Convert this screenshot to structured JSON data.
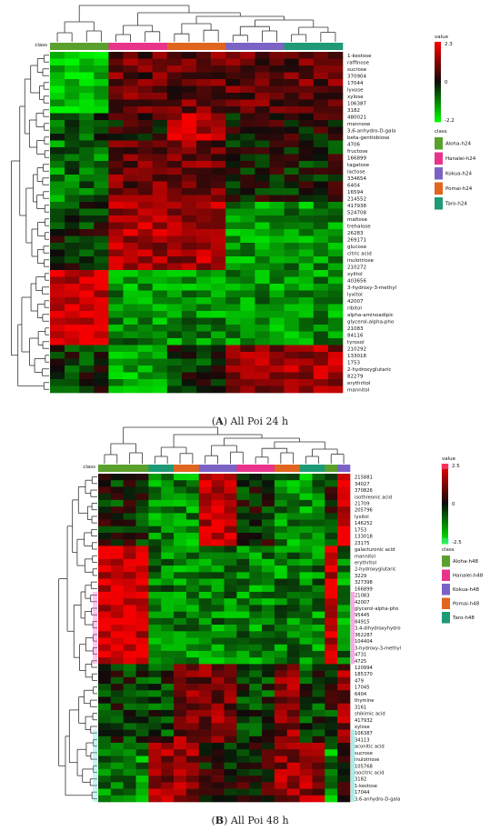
{
  "panels": [
    {
      "id": "A",
      "caption_letter": "A",
      "caption_text": "All Poi 24 h",
      "class_label": "class",
      "legend_value_title": "value",
      "legend_value_ticks": [
        "2.3",
        "0",
        "-2.2"
      ],
      "legend_class_title": "class",
      "classes": [
        {
          "name": "Aloha-h24",
          "color": "#5aa02c"
        },
        {
          "name": "Hanalei-h24",
          "color": "#e8338b"
        },
        {
          "name": "Kokua-h24",
          "color": "#7b63c6"
        },
        {
          "name": "Pomai-h24",
          "color": "#e0651f"
        },
        {
          "name": "Taro-h24",
          "color": "#1e9a76"
        }
      ],
      "column_classes": [
        0,
        0,
        0,
        0,
        1,
        1,
        1,
        1,
        3,
        3,
        3,
        3,
        2,
        2,
        2,
        2,
        4,
        4,
        4,
        4
      ],
      "rows": [
        "1-kestose",
        "raffinose",
        "sucrose",
        "370904",
        "17044",
        "lyxose",
        "xylose",
        "106387",
        "3182",
        "480021",
        "mannose",
        "3,6-anhydro-D-gala",
        "beta-gentiobiose",
        "4706",
        "fructose",
        "166899",
        "tagatose",
        "lactose",
        "334654",
        "6404",
        "16594",
        "214552",
        "417938",
        "524708",
        "maltose",
        "trehalose",
        "26283",
        "269171",
        "glucose",
        "citric acid",
        "inulotriose",
        "210272",
        "xylitol",
        "403656",
        "3-hydroxy-3-methyl",
        "lyxitol",
        "42007",
        "ribitol",
        "alpha-aminoadipic",
        "glycerol-alpha-pho",
        "21083",
        "84116",
        "tyrosol",
        "210292",
        "133018",
        "1753",
        "2-hydroxyglutaric",
        "82279",
        "erythritol",
        "mannitol"
      ]
    },
    {
      "id": "B",
      "caption_letter": "B",
      "caption_text": "All Poi 48 h",
      "class_label": "class",
      "legend_value_title": "value",
      "legend_value_ticks": [
        "2.5",
        "0",
        "-2.5"
      ],
      "legend_class_title": "class",
      "classes": [
        {
          "name": "Aloha-h48",
          "color": "#5aa02c"
        },
        {
          "name": "Hanalei-h48",
          "color": "#e8338b"
        },
        {
          "name": "Kokua-h48",
          "color": "#7b63c6"
        },
        {
          "name": "Pomai-h48",
          "color": "#e0651f"
        },
        {
          "name": "Taro-h48",
          "color": "#1e9a76"
        }
      ],
      "column_classes": [
        0,
        0,
        0,
        0,
        4,
        4,
        3,
        3,
        2,
        2,
        2,
        1,
        1,
        1,
        3,
        3,
        4,
        4,
        0,
        2
      ],
      "rows": [
        "215881",
        "34027",
        "370826",
        "isothreonic acid",
        "21709",
        "205796",
        "lyxitol",
        "146252",
        "1753",
        "133018",
        "23175",
        "galacturonic acid",
        "mannitol",
        "erythritol",
        "2-hydroxyglutaric",
        "3229",
        "327398",
        "166899",
        "21083",
        "42007",
        "glycerol-alpha-pho",
        "95445",
        "84915",
        "3,4-dihydroxyhydro",
        "362287",
        "104404",
        "3-hydroxy-3-methyl",
        "4731",
        "4725",
        "120994",
        "185370",
        "479",
        "17045",
        "6404",
        "thymine",
        "3161",
        "shikimic acid",
        "417932",
        "xylose",
        "106387",
        "34113",
        "aconitic acid",
        "sucrose",
        "inulotriose",
        "105768",
        "isocitric acid",
        "3182",
        "1-kestose",
        "17044",
        "3,6-anhydro-D-gala"
      ]
    }
  ],
  "chart_data": [
    {
      "type": "heatmap",
      "panel": "A",
      "title": "",
      "value_range": [
        -2.2,
        2.3
      ],
      "n_columns": 20,
      "row_blocks": [
        {
          "rows": "1-kestose to 3182",
          "pattern": "low (green) in Aloha-h24, high (red/dark) in other classes"
        },
        {
          "rows": "480021 to beta-gentiobiose",
          "pattern": "high (red) in Pomai-h24, mixed elsewhere"
        },
        {
          "rows": "4706 to 214552",
          "pattern": "mixed; higher in Hanalei-h24 and Pomai-h24"
        },
        {
          "rows": "417938 to 210272",
          "pattern": "high (red) in Hanalei-h24 and Pomai-h24, low (green) in Kokua-h24 and Taro-h24"
        },
        {
          "rows": "xylitol to tyrosol",
          "pattern": "high (red) in Aloha-h24, low (green) in other classes"
        },
        {
          "rows": "210292 to mannitol",
          "pattern": "high (red) in Kokua-h24 and Taro-h24, low (green) in Hanalei-h24"
        }
      ]
    },
    {
      "type": "heatmap",
      "panel": "B",
      "title": "",
      "value_range": [
        -2.5,
        2.5
      ],
      "n_columns": 20,
      "row_blocks": [
        {
          "rows": "215881 to 23175",
          "pattern": "high (red) in Kokua-h48, low (green) in Taro-h48/Pomai-h48"
        },
        {
          "rows": "galacturonic acid to 4725",
          "pattern": "high (red) in Aloha-h48, low (green) in other classes"
        },
        {
          "rows": "120994 to 34113",
          "pattern": "high (red) in Kokua-h48/Pomai-h48, mixed elsewhere"
        },
        {
          "rows": "aconitic acid to 3,6-anhydro-D-gala",
          "pattern": "high (red) in Taro-h48/Pomai-h48 columns, low (green) in Aloha-h48"
        }
      ]
    }
  ]
}
